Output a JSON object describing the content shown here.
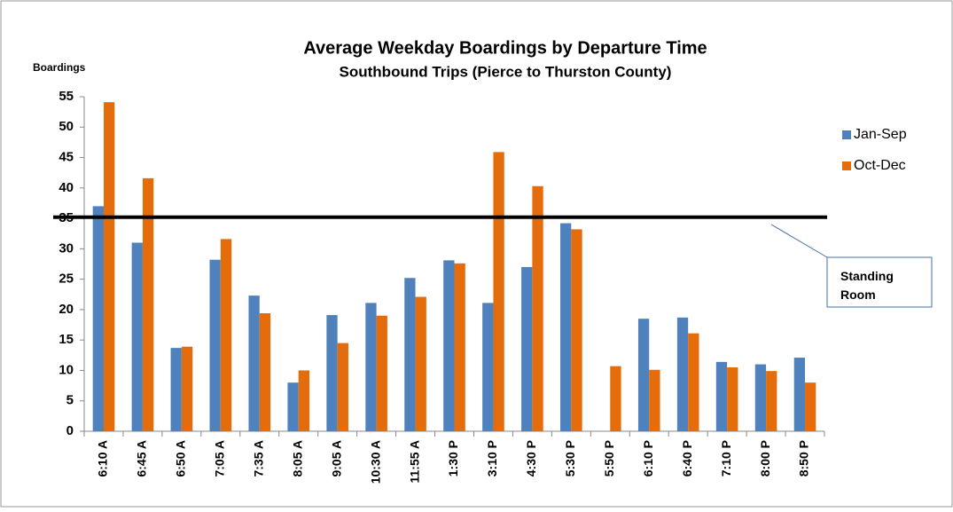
{
  "chart_data": {
    "type": "bar",
    "title": "Average Weekday Boardings by Departure Time",
    "subtitle": "Southbound Trips (Pierce to Thurston County)",
    "y_label": "Boardings",
    "categories": [
      "6:10 A",
      "6:45 A",
      "6:50 A",
      "7:05 A",
      "7:35 A",
      "8:05 A",
      "9:05 A",
      "10:30 A",
      "11:55 A",
      "1:30 P",
      "3:10 P",
      "4:30 P",
      "5:30 P",
      "5:50 P",
      "6:10 P",
      "6:40 P",
      "7:10 P",
      "8:00 P",
      "8:50 P"
    ],
    "series": [
      {
        "name": "Jan-Sep",
        "color": "#4f81bd",
        "values": [
          37,
          31,
          13.7,
          28.2,
          22.3,
          8,
          19.1,
          21.1,
          25.2,
          28.1,
          21.1,
          27,
          34.2,
          null,
          18.5,
          18.7,
          11.4,
          11,
          12.1
        ]
      },
      {
        "name": "Oct-Dec",
        "color": "#e46c0a",
        "values": [
          54.1,
          41.6,
          13.9,
          31.6,
          19.4,
          10,
          14.5,
          19,
          22.1,
          27.6,
          45.9,
          40.3,
          33.2,
          10.7,
          10.1,
          16.1,
          10.5,
          9.9,
          8
        ]
      }
    ],
    "ylim": [
      0,
      55
    ],
    "yticks": [
      0,
      5,
      10,
      15,
      20,
      25,
      30,
      35,
      40,
      45,
      50,
      55
    ],
    "reference_line": 35.2,
    "annotation": "Standing Room",
    "legend": "right"
  }
}
